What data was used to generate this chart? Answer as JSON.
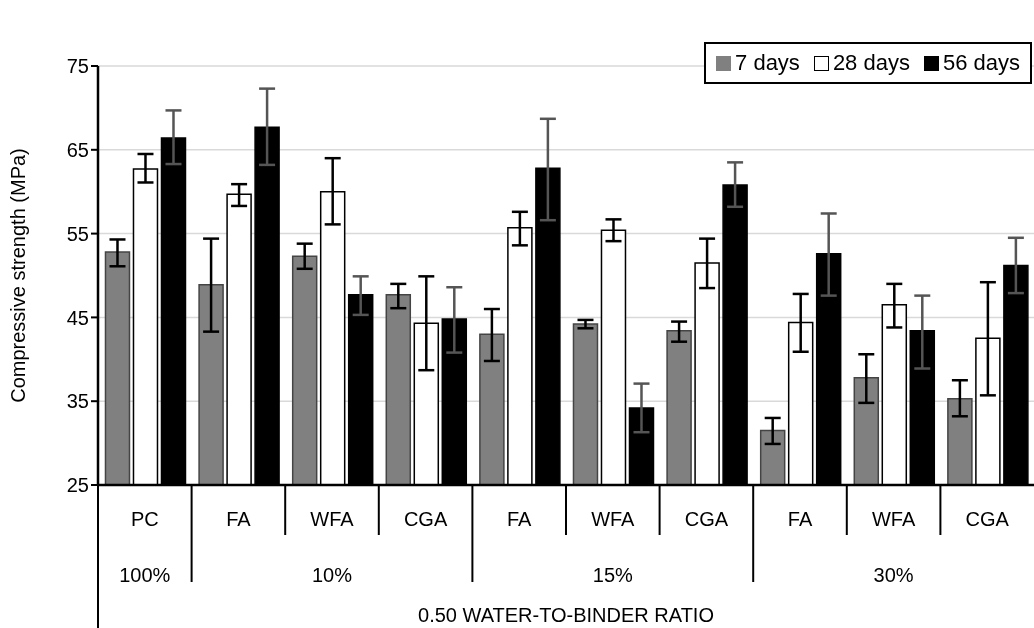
{
  "chart_data": {
    "type": "bar",
    "xlabel": "0.50 WATER-TO-BINDER RATIO",
    "ylabel": "Compressive strength (MPa)",
    "categories": [
      "PC",
      "FA",
      "WFA",
      "CGA",
      "FA",
      "WFA",
      "CGA",
      "FA",
      "WFA",
      "CGA"
    ],
    "annotations": [
      "100%",
      "10%",
      "15%",
      "30%"
    ],
    "series": [
      {
        "name": "7 days",
        "color": "#808080",
        "values": [
          52.8,
          48.9,
          52.3,
          47.7,
          43.0,
          44.2,
          43.4,
          31.5,
          37.8,
          35.3
        ],
        "errors": [
          [
            51.1,
            54.3
          ],
          [
            43.3,
            54.4
          ],
          [
            50.8,
            53.8
          ],
          [
            46.1,
            49.0
          ],
          [
            39.8,
            46.0
          ],
          [
            43.7,
            44.7
          ],
          [
            42.1,
            44.5
          ],
          [
            29.9,
            33.0
          ],
          [
            34.8,
            40.6
          ],
          [
            33.2,
            37.5
          ]
        ]
      },
      {
        "name": "28 days",
        "color": "#ffffff",
        "values": [
          62.7,
          59.7,
          60.0,
          44.3,
          55.7,
          55.4,
          51.5,
          44.4,
          46.5,
          42.5
        ],
        "errors": [
          [
            61.1,
            64.5
          ],
          [
            58.3,
            60.9
          ],
          [
            56.1,
            64.0
          ],
          [
            38.7,
            49.9
          ],
          [
            53.6,
            57.6
          ],
          [
            54.1,
            56.7
          ],
          [
            48.5,
            54.4
          ],
          [
            40.9,
            47.8
          ],
          [
            43.8,
            49.0
          ],
          [
            35.7,
            49.2
          ]
        ]
      },
      {
        "name": "56 days",
        "color": "#000000",
        "values": [
          66.4,
          67.7,
          47.7,
          44.8,
          62.8,
          34.2,
          60.8,
          52.6,
          43.4,
          51.2
        ],
        "errors": [
          [
            63.3,
            69.7
          ],
          [
            63.2,
            72.3
          ],
          [
            45.3,
            49.9
          ],
          [
            40.8,
            48.6
          ],
          [
            56.6,
            68.7
          ],
          [
            31.3,
            37.1
          ],
          [
            58.2,
            63.5
          ],
          [
            47.6,
            57.4
          ],
          [
            38.9,
            47.6
          ],
          [
            47.9,
            54.5
          ]
        ]
      }
    ],
    "ylim": [
      25,
      75
    ],
    "yticks": [
      25,
      35,
      45,
      55,
      65,
      75
    ],
    "grid": "y",
    "legend": "top right"
  }
}
